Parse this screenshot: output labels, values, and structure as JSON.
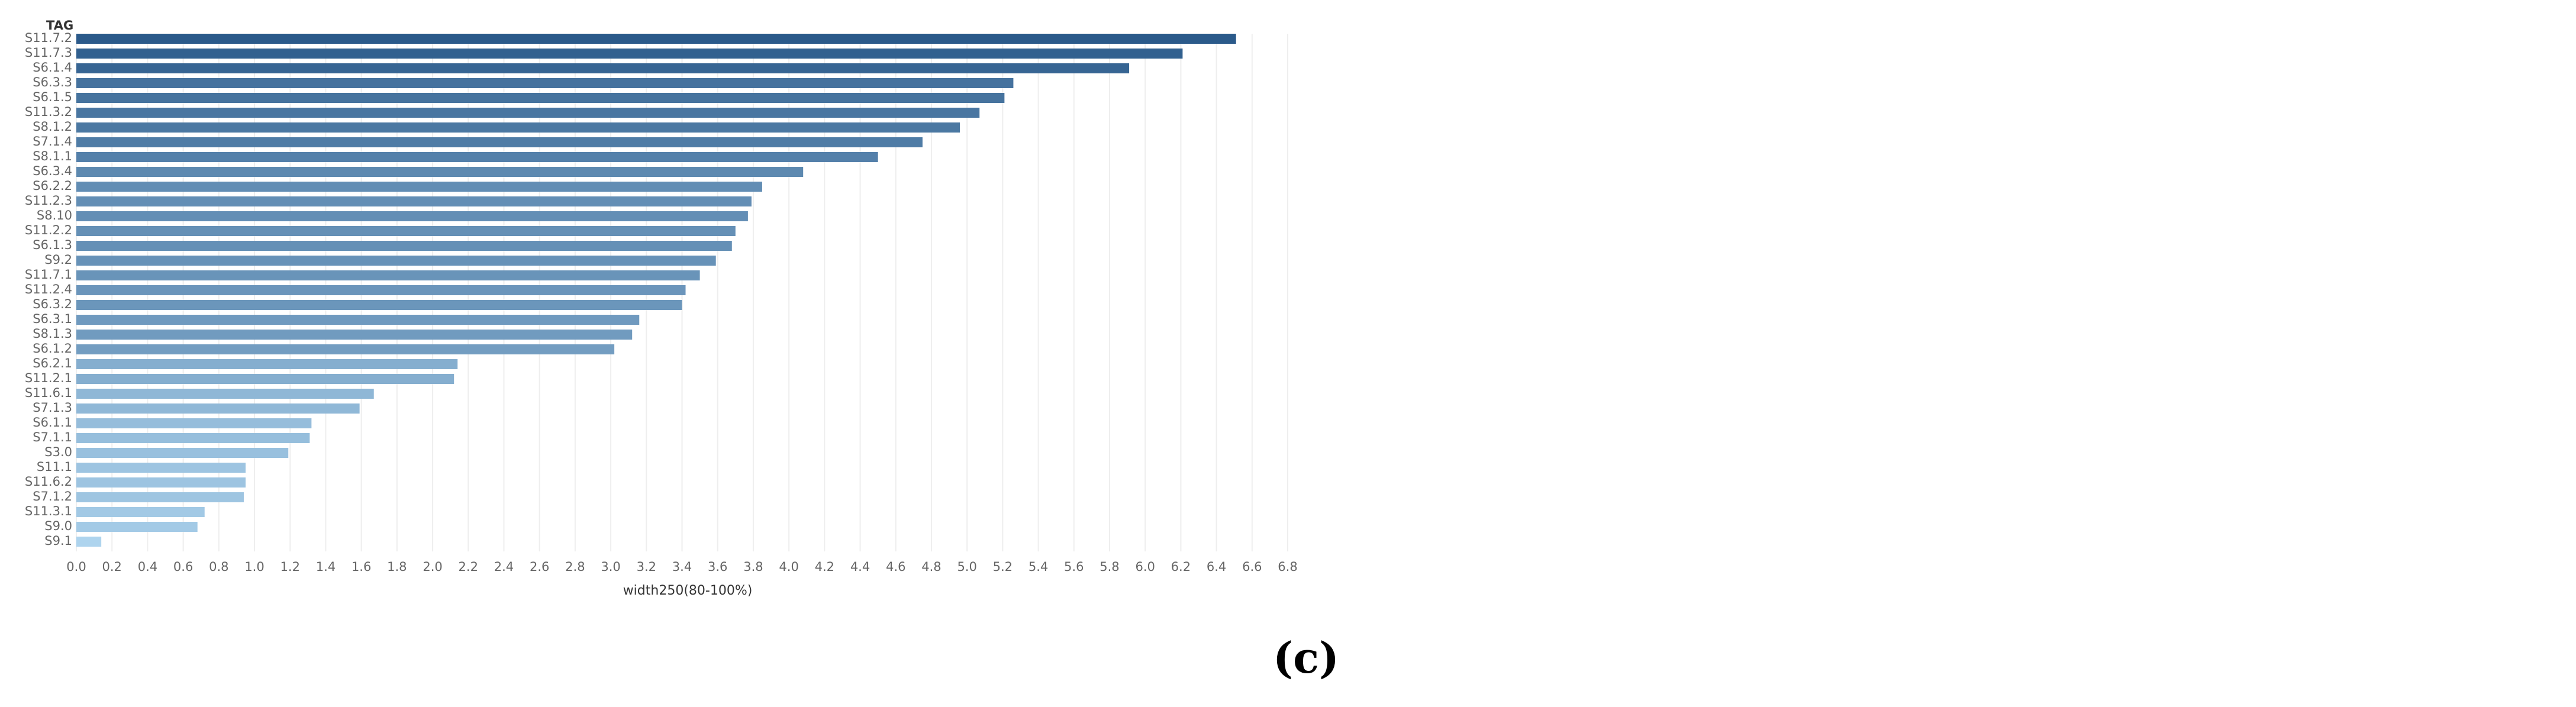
{
  "chart_data": {
    "type": "bar",
    "orientation": "horizontal",
    "category_header": "TAG",
    "xlabel": "width250(80-100%)",
    "xlim": [
      0,
      6.8
    ],
    "xticks": [
      "0.0",
      "0.2",
      "0.4",
      "0.6",
      "0.8",
      "1.0",
      "1.2",
      "1.4",
      "1.6",
      "1.8",
      "2.0",
      "2.2",
      "2.4",
      "2.6",
      "2.8",
      "3.0",
      "3.2",
      "3.4",
      "3.6",
      "3.8",
      "4.0",
      "4.2",
      "4.4",
      "4.6",
      "4.8",
      "5.0",
      "5.2",
      "5.4",
      "5.6",
      "5.8",
      "6.0",
      "6.2",
      "6.4",
      "6.6",
      "6.8"
    ],
    "grid": "vertical",
    "color_low": "#aed4ee",
    "color_high": "#2b5a8a",
    "categories": [
      "S11.7.2",
      "S11.7.3",
      "S6.1.4",
      "S6.3.3",
      "S6.1.5",
      "S11.3.2",
      "S8.1.2",
      "S7.1.4",
      "S8.1.1",
      "S6.3.4",
      "S6.2.2",
      "S11.2.3",
      "S8.10",
      "S11.2.2",
      "S6.1.3",
      "S9.2",
      "S11.7.1",
      "S11.2.4",
      "S6.3.2",
      "S6.3.1",
      "S8.1.3",
      "S6.1.2",
      "S6.2.1",
      "S11.2.1",
      "S11.6.1",
      "S7.1.3",
      "S6.1.1",
      "S7.1.1",
      "S3.0",
      "S11.1",
      "S11.6.2",
      "S7.1.2",
      "S11.3.1",
      "S9.0",
      "S9.1"
    ],
    "values": [
      6.51,
      6.21,
      5.91,
      5.26,
      5.21,
      5.07,
      4.96,
      4.75,
      4.5,
      4.08,
      3.85,
      3.79,
      3.77,
      3.7,
      3.68,
      3.59,
      3.5,
      3.42,
      3.4,
      3.16,
      3.12,
      3.02,
      2.14,
      2.12,
      1.67,
      1.59,
      1.32,
      1.31,
      1.19,
      0.95,
      0.95,
      0.94,
      0.72,
      0.68,
      0.14
    ]
  },
  "caption": "(c)"
}
